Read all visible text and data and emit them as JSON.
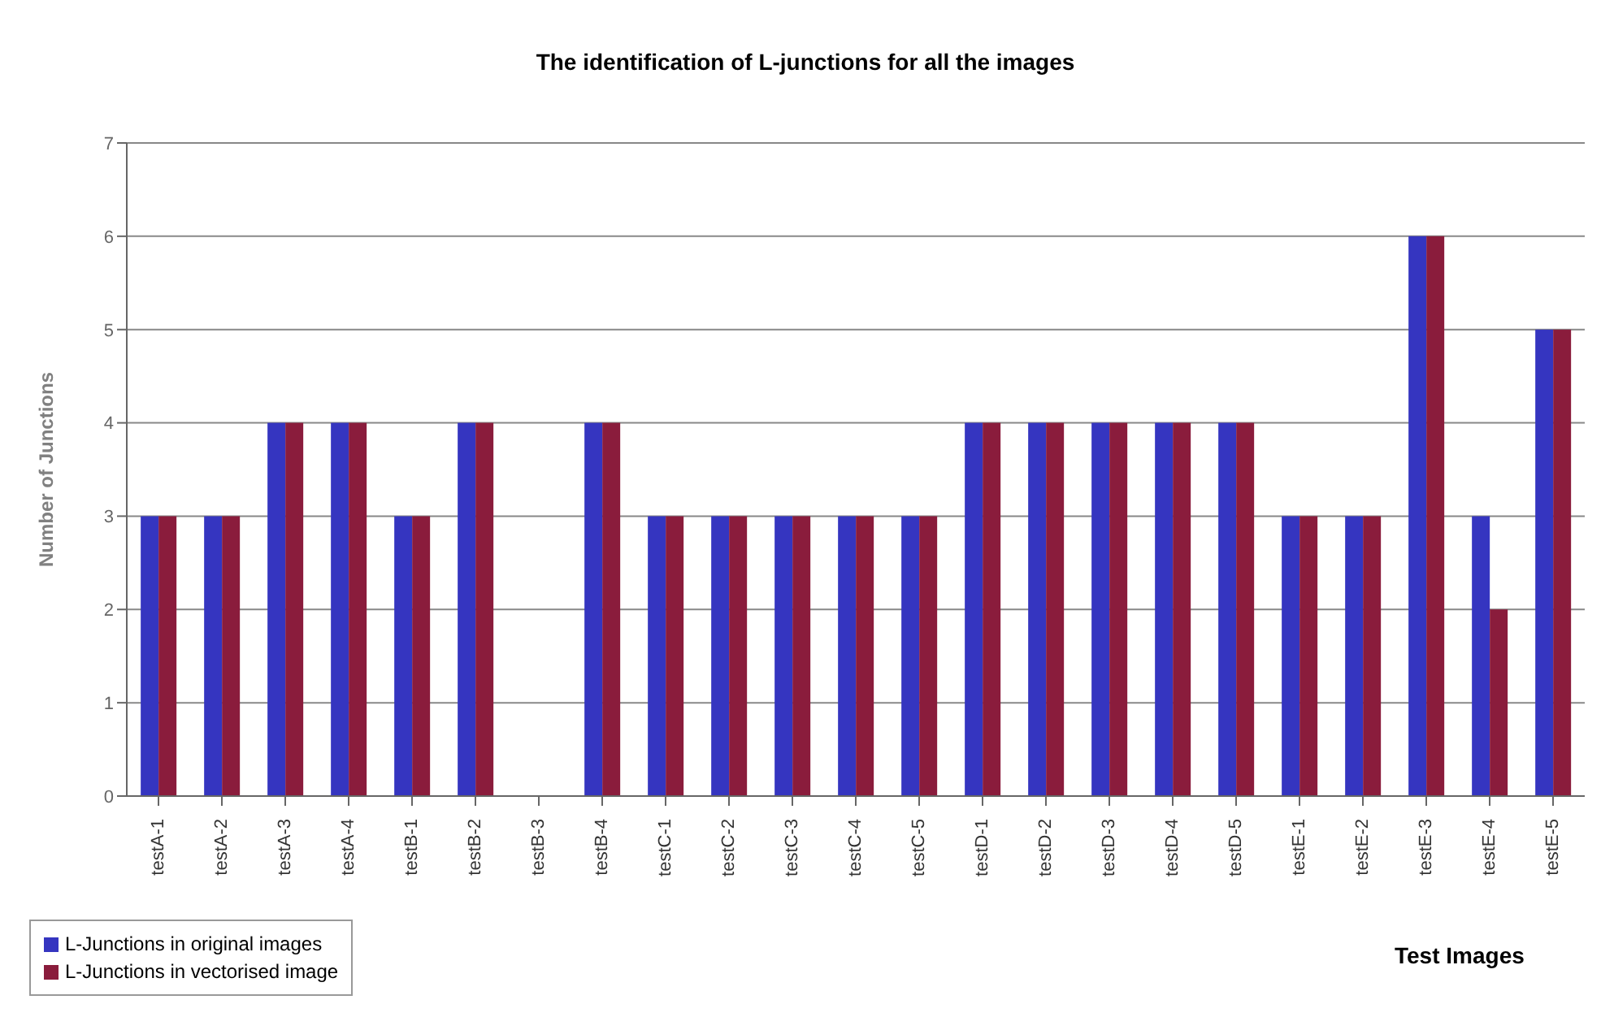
{
  "chart_data": {
    "type": "bar",
    "title": "The identification of L-junctions for all the images",
    "xlabel": "Test Images",
    "ylabel": "Number of Junctions",
    "categories": [
      "testA-1",
      "testA-2",
      "testA-3",
      "testA-4",
      "testB-1",
      "testB-2",
      "testB-3",
      "testB-4",
      "testC-1",
      "testC-2",
      "testC-3",
      "testC-4",
      "testC-5",
      "testD-1",
      "testD-2",
      "testD-3",
      "testD-4",
      "testD-5",
      "testE-1",
      "testE-2",
      "testE-3",
      "testE-4",
      "testE-5"
    ],
    "series": [
      {
        "name": "L-Junctions in original images",
        "color": "#3535c0",
        "values": [
          3,
          3,
          4,
          4,
          3,
          4,
          0,
          4,
          3,
          3,
          3,
          3,
          3,
          4,
          4,
          4,
          4,
          4,
          3,
          3,
          6,
          3,
          5
        ]
      },
      {
        "name": "L-Junctions in vectorised image",
        "color": "#8a1c3c",
        "values": [
          3,
          3,
          4,
          4,
          3,
          4,
          0,
          4,
          3,
          3,
          3,
          3,
          3,
          4,
          4,
          4,
          4,
          4,
          3,
          3,
          6,
          2,
          5
        ]
      }
    ],
    "ylim": [
      0,
      7
    ],
    "yticks": [
      0,
      1,
      2,
      3,
      4,
      5,
      6,
      7
    ],
    "grid": "y",
    "legend": "bottom left"
  }
}
